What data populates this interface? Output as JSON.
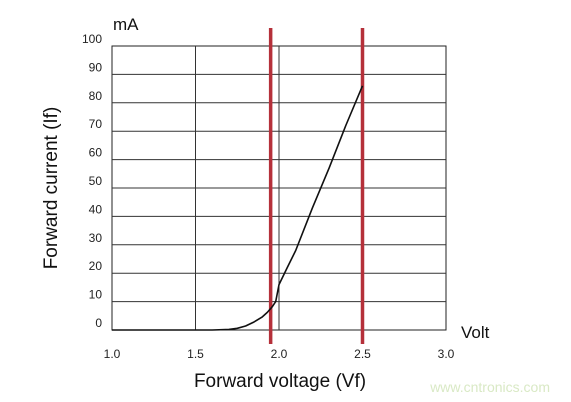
{
  "chart_data": {
    "type": "line",
    "title": "",
    "xlabel": "Forward voltage (Vf)",
    "ylabel": "Forward current (If)",
    "x_unit": "Volt",
    "y_unit": "mA",
    "xlim": [
      1.0,
      3.0
    ],
    "ylim": [
      0,
      100
    ],
    "x_ticks": [
      "1.0",
      "1.5",
      "2.0",
      "2.5",
      "3.0"
    ],
    "y_ticks": [
      "0",
      "10",
      "20",
      "30",
      "40",
      "50",
      "60",
      "70",
      "80",
      "90",
      "100"
    ],
    "grid": true,
    "legend": "none",
    "series": [
      {
        "x": [
          1.0,
          1.5,
          1.6,
          1.7,
          1.75,
          1.8,
          1.85,
          1.9,
          1.93,
          1.96,
          1.98,
          2.0,
          2.05,
          2.1,
          2.2,
          2.3,
          2.4,
          2.5
        ],
        "y": [
          0,
          0,
          0,
          0.2,
          0.6,
          1.4,
          2.8,
          4.6,
          6.2,
          8.2,
          10,
          16,
          22,
          28,
          43,
          57,
          72,
          86
        ],
        "color": "#111111"
      }
    ],
    "reference_lines": [
      {
        "axis": "x",
        "value": 1.95,
        "color": "#b5303a"
      },
      {
        "axis": "x",
        "value": 2.5,
        "color": "#b5303a"
      }
    ]
  },
  "watermark": {
    "text": "www.cntronics.com",
    "color": "#d9e9c5"
  }
}
